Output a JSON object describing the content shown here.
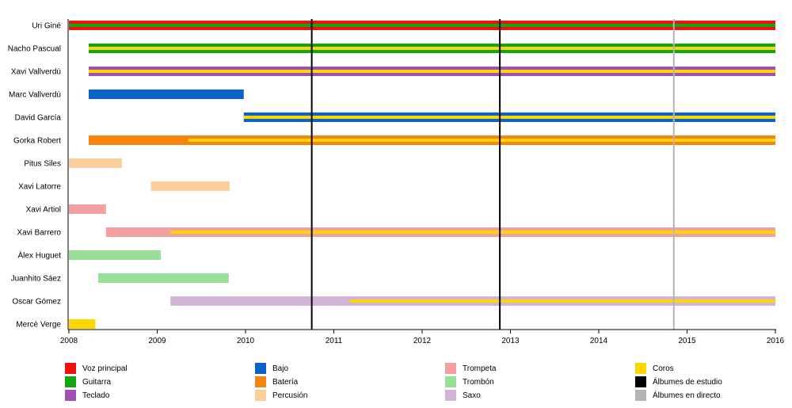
{
  "chart_data": {
    "type": "timeline",
    "members": [
      {
        "name": "Uri Giné",
        "periods": [
          {
            "role": "Voz principal",
            "start": 2008.0,
            "end": 2016.0,
            "secondary": {
              "role": "Guitarra",
              "start": 2008.0,
              "end": 2016.0
            }
          }
        ]
      },
      {
        "name": "Nacho Pascual",
        "periods": [
          {
            "role": "Guitarra",
            "start": 2008.25,
            "end": 2016.0,
            "secondary": {
              "role": "Coros",
              "start": 2008.25,
              "end": 2016.0
            }
          }
        ]
      },
      {
        "name": "Xavi Vallverdú",
        "periods": [
          {
            "role": "Teclado",
            "start": 2008.25,
            "end": 2016.0,
            "secondary": {
              "role": "Coros",
              "start": 2008.25,
              "end": 2016.0
            }
          }
        ]
      },
      {
        "name": "Marc Vallverdú",
        "periods": [
          {
            "role": "Bajo",
            "start": 2008.25,
            "end": 2009.98
          }
        ]
      },
      {
        "name": "David García",
        "periods": [
          {
            "role": "Bajo",
            "start": 2009.98,
            "end": 2016.0,
            "secondary": {
              "role": "Coros",
              "start": 2009.98,
              "end": 2016.0
            }
          }
        ]
      },
      {
        "name": "Gorka Robert",
        "periods": [
          {
            "role": "Batería",
            "start": 2008.25,
            "end": 2016.0,
            "secondary": {
              "role": "Coros",
              "start": 2009.35,
              "end": 2016.0
            }
          }
        ]
      },
      {
        "name": "Pitus Siles",
        "periods": [
          {
            "role": "Percusión",
            "start": 2008.0,
            "end": 2008.6
          }
        ]
      },
      {
        "name": "Xavi Latorre",
        "periods": [
          {
            "role": "Percusión",
            "start": 2008.93,
            "end": 2009.82
          }
        ]
      },
      {
        "name": "Xavi Artiol",
        "periods": [
          {
            "role": "Trompeta",
            "start": 2008.0,
            "end": 2008.42
          }
        ]
      },
      {
        "name": "Xavi Barrero",
        "periods": [
          {
            "role": "Trompeta",
            "start": 2008.42,
            "end": 2016.0,
            "secondary": {
              "role": "Coros",
              "start": 2009.15,
              "end": 2016.0
            }
          }
        ]
      },
      {
        "name": "Àlex Huguet",
        "periods": [
          {
            "role": "Trombón",
            "start": 2008.0,
            "end": 2009.04
          }
        ]
      },
      {
        "name": "Juanhito Sáez",
        "periods": [
          {
            "role": "Trombón",
            "start": 2008.33,
            "end": 2009.81
          }
        ]
      },
      {
        "name": "Oscar Gómez",
        "periods": [
          {
            "role": "Saxo",
            "start": 2009.15,
            "end": 2016.0,
            "secondary": {
              "role": "Coros",
              "start": 2011.18,
              "end": 2016.0
            }
          }
        ]
      },
      {
        "name": "Mercè Verge",
        "periods": [
          {
            "role": "Coros",
            "start": 2008.0,
            "end": 2008.3
          }
        ]
      }
    ],
    "x_ticks": [
      "2008",
      "2009",
      "2010",
      "2011",
      "2012",
      "2013",
      "2014",
      "2015",
      "2016"
    ],
    "xlim": [
      2008,
      2016
    ],
    "studio_albums": [
      2010.75,
      2012.88
    ],
    "live_albums": [
      2014.85
    ],
    "roles": [
      {
        "name": "Voz principal",
        "color": "#f01010"
      },
      {
        "name": "Guitarra",
        "color": "#10a810"
      },
      {
        "name": "Teclado",
        "color": "#a050b0"
      },
      {
        "name": "Bajo",
        "color": "#0a64c8"
      },
      {
        "name": "Batería",
        "color": "#f88410"
      },
      {
        "name": "Percusión",
        "color": "#fbcf9c"
      },
      {
        "name": "Trompeta",
        "color": "#f5a0a0"
      },
      {
        "name": "Trombón",
        "color": "#98e098"
      },
      {
        "name": "Saxo",
        "color": "#d0b4d4"
      },
      {
        "name": "Coros",
        "color": "#ffd700"
      },
      {
        "name": "Álbumes de estudio",
        "color": "#000000"
      },
      {
        "name": "Álbumes en directo",
        "color": "#b4b4b4"
      }
    ]
  }
}
